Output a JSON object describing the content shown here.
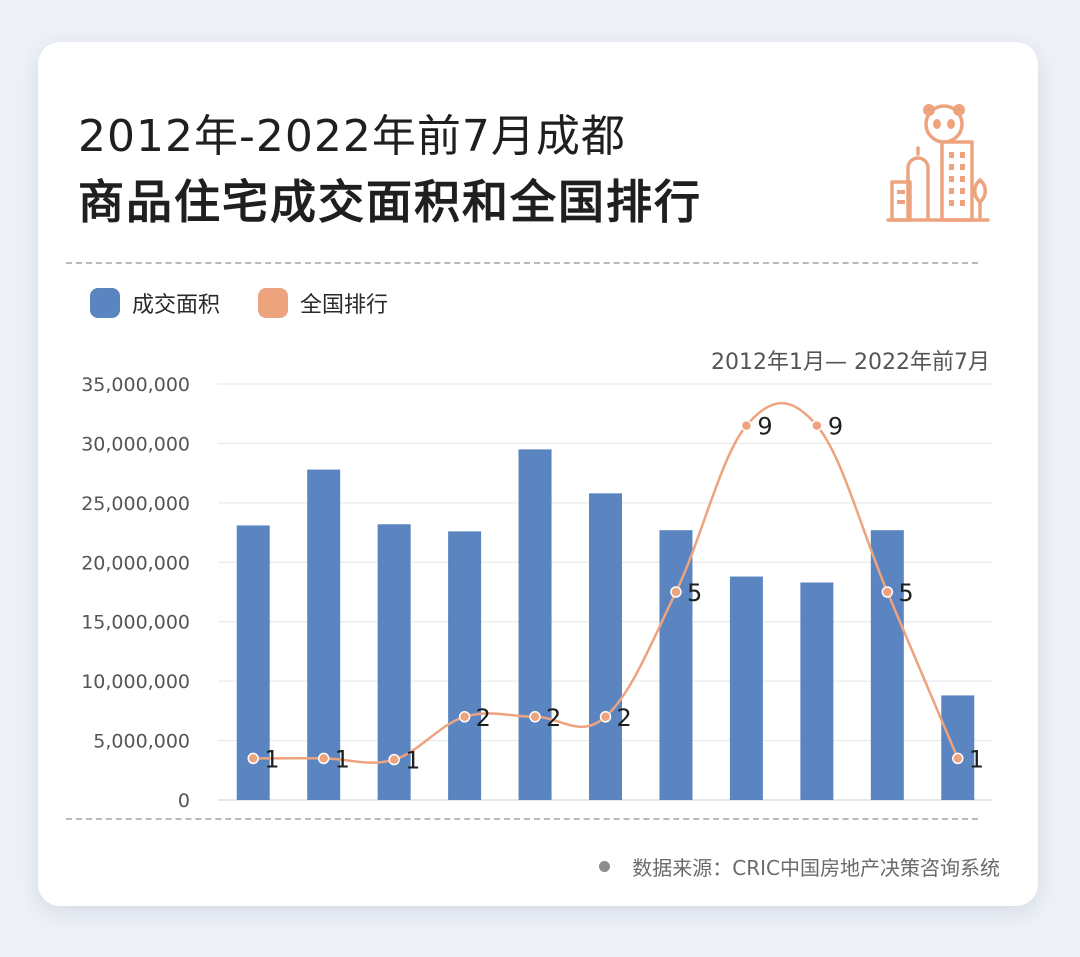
{
  "header": {
    "title_line1": "2012年-2022年前7月成都",
    "title_line2": "商品住宅成交面积和全国排行"
  },
  "legend": {
    "bar_label": "成交面积",
    "line_label": "全国排行"
  },
  "date_range": "2012年1月— 2022年前7月",
  "source": "数据来源：CRIC中国房地产决策咨询系统",
  "colors": {
    "bar": "#5b85c0",
    "line": "#eea37f",
    "grid": "#e6e6e6",
    "axis_text": "#555555"
  },
  "icons": [
    "panda-building-logo-icon",
    "source-dot-icon"
  ],
  "chart_data": {
    "type": "bar",
    "title": "",
    "xlabel": "",
    "ylabel": "",
    "ylim": [
      0,
      35000000
    ],
    "y_ticks": [
      "35,000,000",
      "30,000,000",
      "25,000,000",
      "20,000,000",
      "15,000,000",
      "10,000,000",
      "5,000,000",
      "0"
    ],
    "y_tick_values": [
      35000000,
      30000000,
      25000000,
      20000000,
      15000000,
      10000000,
      5000000,
      0
    ],
    "grid": true,
    "legend_position": "top-left",
    "series": [
      {
        "name": "成交面积",
        "type": "bar",
        "values": [
          23100000,
          27800000,
          23200000,
          22600000,
          29500000,
          25800000,
          22700000,
          18800000,
          18300000,
          22700000,
          8800000
        ]
      },
      {
        "name": "全国排行",
        "type": "line",
        "smooth": true,
        "plotted_at": [
          3500000,
          3500000,
          3400000,
          7000000,
          7000000,
          7000000,
          17500000,
          31500000,
          31500000,
          17500000,
          3500000
        ],
        "labels": [
          "1",
          "1",
          "1",
          "2",
          "2",
          "2",
          "5",
          "9",
          "9",
          "5",
          "1"
        ]
      }
    ]
  }
}
